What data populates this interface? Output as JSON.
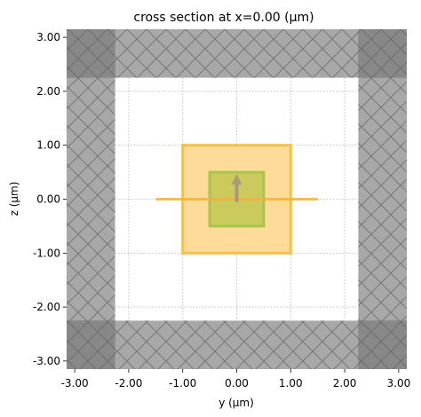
{
  "chart_data": {
    "type": "diagram",
    "title": "cross section at x=0.00 (µm)",
    "xlabel": "y (µm)",
    "ylabel": "z (µm)",
    "xlim": [
      -3.15,
      3.15
    ],
    "ylim": [
      -3.15,
      3.15
    ],
    "xticks": [
      "-3.00",
      "-2.00",
      "-1.00",
      "0.00",
      "1.00",
      "2.00",
      "3.00"
    ],
    "yticks": [
      "3.00",
      "2.00",
      "1.00",
      "0.00",
      "-1.00",
      "-2.00",
      "-3.00"
    ],
    "grid": true,
    "pml": {
      "interior": [
        -2.25,
        2.25
      ],
      "color_side": "#a8a8a8",
      "color_corner": "#888888",
      "hatch": "crosshatch"
    },
    "structures": [
      {
        "name": "outer box",
        "y": [
          -1.0,
          1.0
        ],
        "z": [
          -1.0,
          1.0
        ],
        "fill": "#ffd994",
        "stroke": "#f5c04a"
      },
      {
        "name": "inner box",
        "y": [
          -0.5,
          0.5
        ],
        "z": [
          -0.5,
          0.5
        ],
        "fill": "#c7c95a",
        "stroke": "#a8c44a"
      }
    ],
    "monitor_line": {
      "y": [
        -1.5,
        1.5
      ],
      "z": 0.0,
      "color": "#f2b13a"
    },
    "source_arrow": {
      "y": 0.0,
      "z_from": -0.05,
      "z_to": 0.45,
      "color": "#a89a78"
    }
  }
}
